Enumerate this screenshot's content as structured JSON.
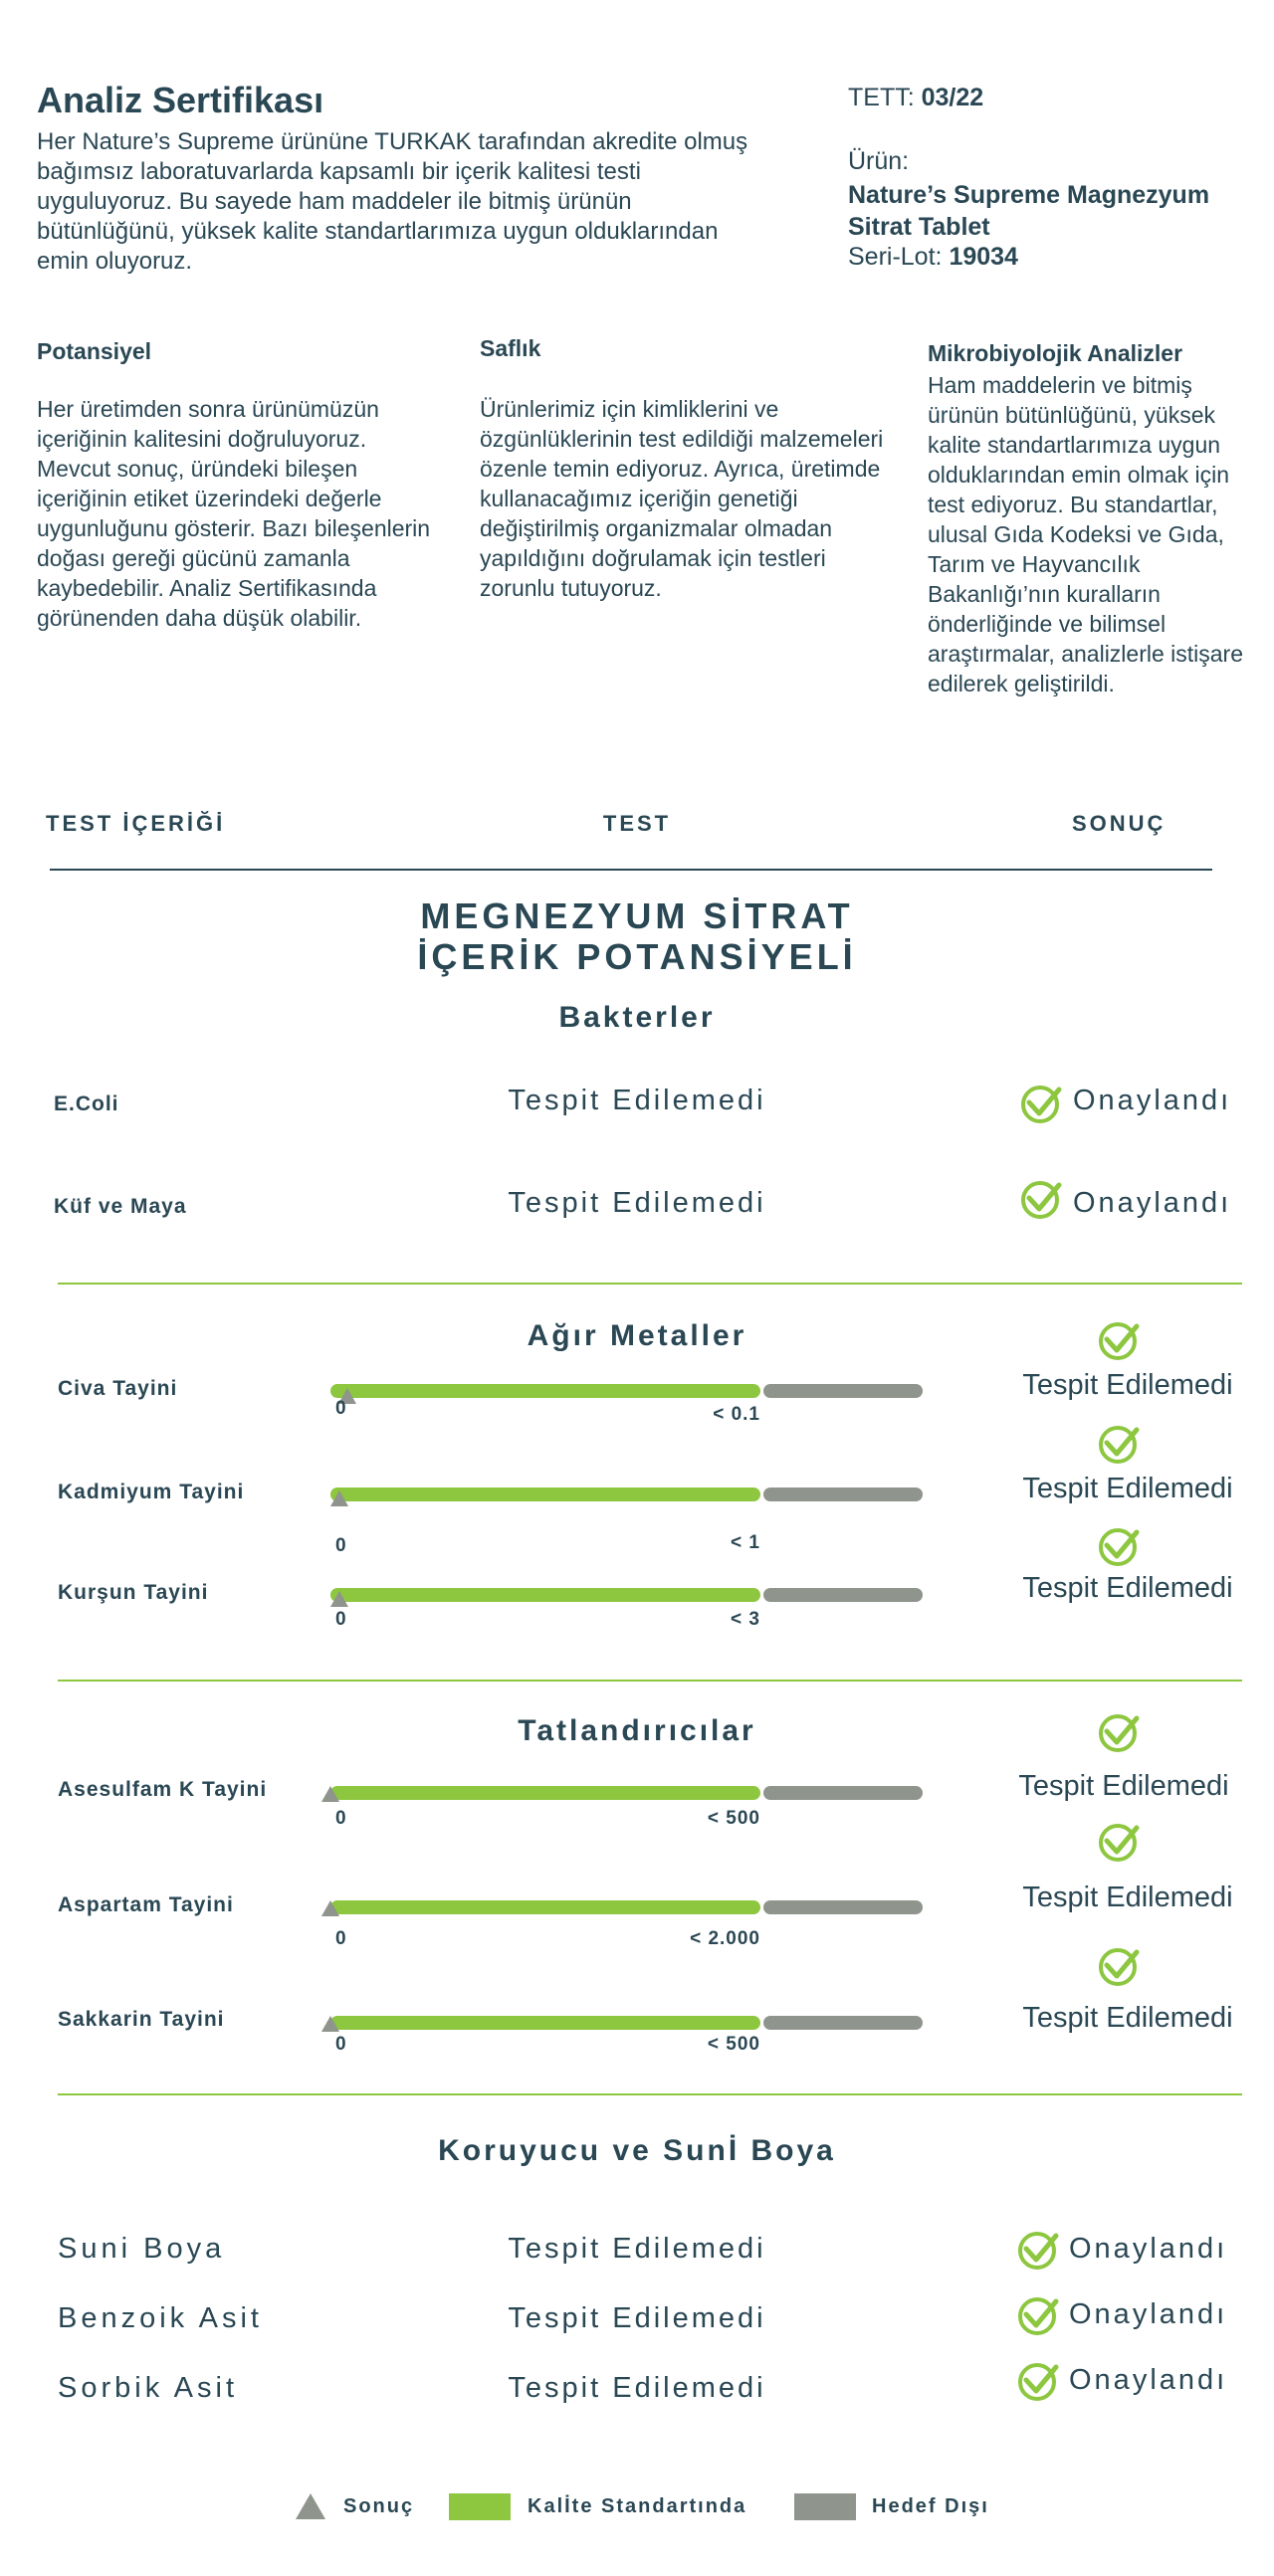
{
  "header": {
    "title": "Analiz Sertifikası",
    "intro": "Her Nature’s Supreme ürününe TURKAK tarafından akredite olmuş bağımsız laboratuvarlarda kapsamlı bir içerik kalitesi testi uyguluyoruz. Bu sayede ham maddeler ile bitmiş ürünün bütünlüğünü, yüksek kalite standartlarımıza uygun olduklarından emin oluyoruz.",
    "tett_label": "TETT:",
    "tett_value": "03/22",
    "urun_label": "Ürün:",
    "urun_value": "Nature’s Supreme Magnezyum Sitrat Tablet",
    "lot_label": "Seri-Lot:",
    "lot_value": "19034"
  },
  "columns": [
    {
      "heading": "Potansiyel",
      "text": "Her üretimden sonra ürünümüzün içeriğinin kalitesini doğruluyoruz. Mevcut sonuç, üründeki bileşen içeriğinin etiket üzerindeki değerle uygunluğunu gösterir. Bazı bileşenlerin doğası gereği gücünü zamanla kaybedebilir. Analiz Sertifikasında görünenden daha düşük olabilir."
    },
    {
      "heading": "Saflık",
      "text": "Ürünlerimiz için kimliklerini ve özgünlüklerinin test edildiği malzemeleri özenle temin ediyoruz. Ayrıca, üretimde kullanacağımız içeriğin genetiği değiştirilmiş organizmalar olmadan yapıldığını doğrulamak için testleri zorunlu tutuyoruz."
    },
    {
      "heading": "Mikrobiyolojik Analizler",
      "text": "Ham maddelerin ve bitmiş ürünün bütünlüğünü, yüksek kalite standartlarımıza uygun olduklarından emin olmak için test ediyoruz. Bu standartlar, ulusal Gıda Kodeksi ve Gıda, Tarım ve Hayvancılık Bakanlığı’nın kuralların önderliğinde ve bilimsel araştırmalar, analizlerle istişare edilerek geliştirildi."
    }
  ],
  "table_header": {
    "col1": "TEST İÇERİĞİ",
    "col2": "TEST",
    "col3": "SONUÇ"
  },
  "section_title_line1": "MEGNEZYUM SİTRAT",
  "section_title_line2": "İÇERİK POTANSİYELİ",
  "bacteria": {
    "title": "Bakterler",
    "rows": [
      {
        "label": "E.Coli",
        "test": "Tespit Edilemedi",
        "result": "Onaylandı"
      },
      {
        "label": "Küf ve Maya",
        "test": "Tespit Edilemedi",
        "result": "Onaylandı"
      }
    ]
  },
  "metals": {
    "title": "Ağır Metaller",
    "rows": [
      {
        "label": "Civa Tayini",
        "min": "0",
        "max": "< 0.1",
        "marker_fraction": 0.04,
        "result": "Tespit Edilemedi"
      },
      {
        "label": "Kadmiyum Tayini",
        "min": "0",
        "max": "< 1",
        "marker_fraction": 0.02,
        "result": "Tespit Edilemedi"
      },
      {
        "label": "Kurşun Tayini",
        "min": "0",
        "max": "< 3",
        "marker_fraction": 0.02,
        "result": "Tespit Edilemedi"
      }
    ]
  },
  "sweeteners": {
    "title": "Tatlandırıcılar",
    "rows": [
      {
        "label": "Asesulfam K Tayini",
        "min": "0",
        "max": "< 500",
        "marker_fraction": 0.0,
        "result": "Tespit Edilemedi"
      },
      {
        "label": "Aspartam Tayini",
        "min": "0",
        "max": "< 2.000",
        "marker_fraction": 0.0,
        "result": "Tespit Edilemedi"
      },
      {
        "label": "Sakkarin Tayini",
        "min": "0",
        "max": "< 500",
        "marker_fraction": 0.0,
        "result": "Tespit Edilemedi"
      }
    ]
  },
  "preservatives": {
    "title": "Koruyucu ve Sunİ Boya",
    "rows": [
      {
        "label": "Suni Boya",
        "test": "Tespit Edilemedi",
        "result": "Onaylandı"
      },
      {
        "label": "Benzoik Asit",
        "test": "Tespit Edilemedi",
        "result": "Onaylandı"
      },
      {
        "label": "Sorbik Asit",
        "test": "Tespit Edilemedi",
        "result": "Onaylandı"
      }
    ]
  },
  "legend": {
    "result": "Sonuç",
    "in_standard": "Kalİte Standartında",
    "out_of_target": "Hedef Dışı"
  },
  "colors": {
    "navy": "#2a4754",
    "green": "#8dc63f",
    "gray": "#8f948c"
  }
}
